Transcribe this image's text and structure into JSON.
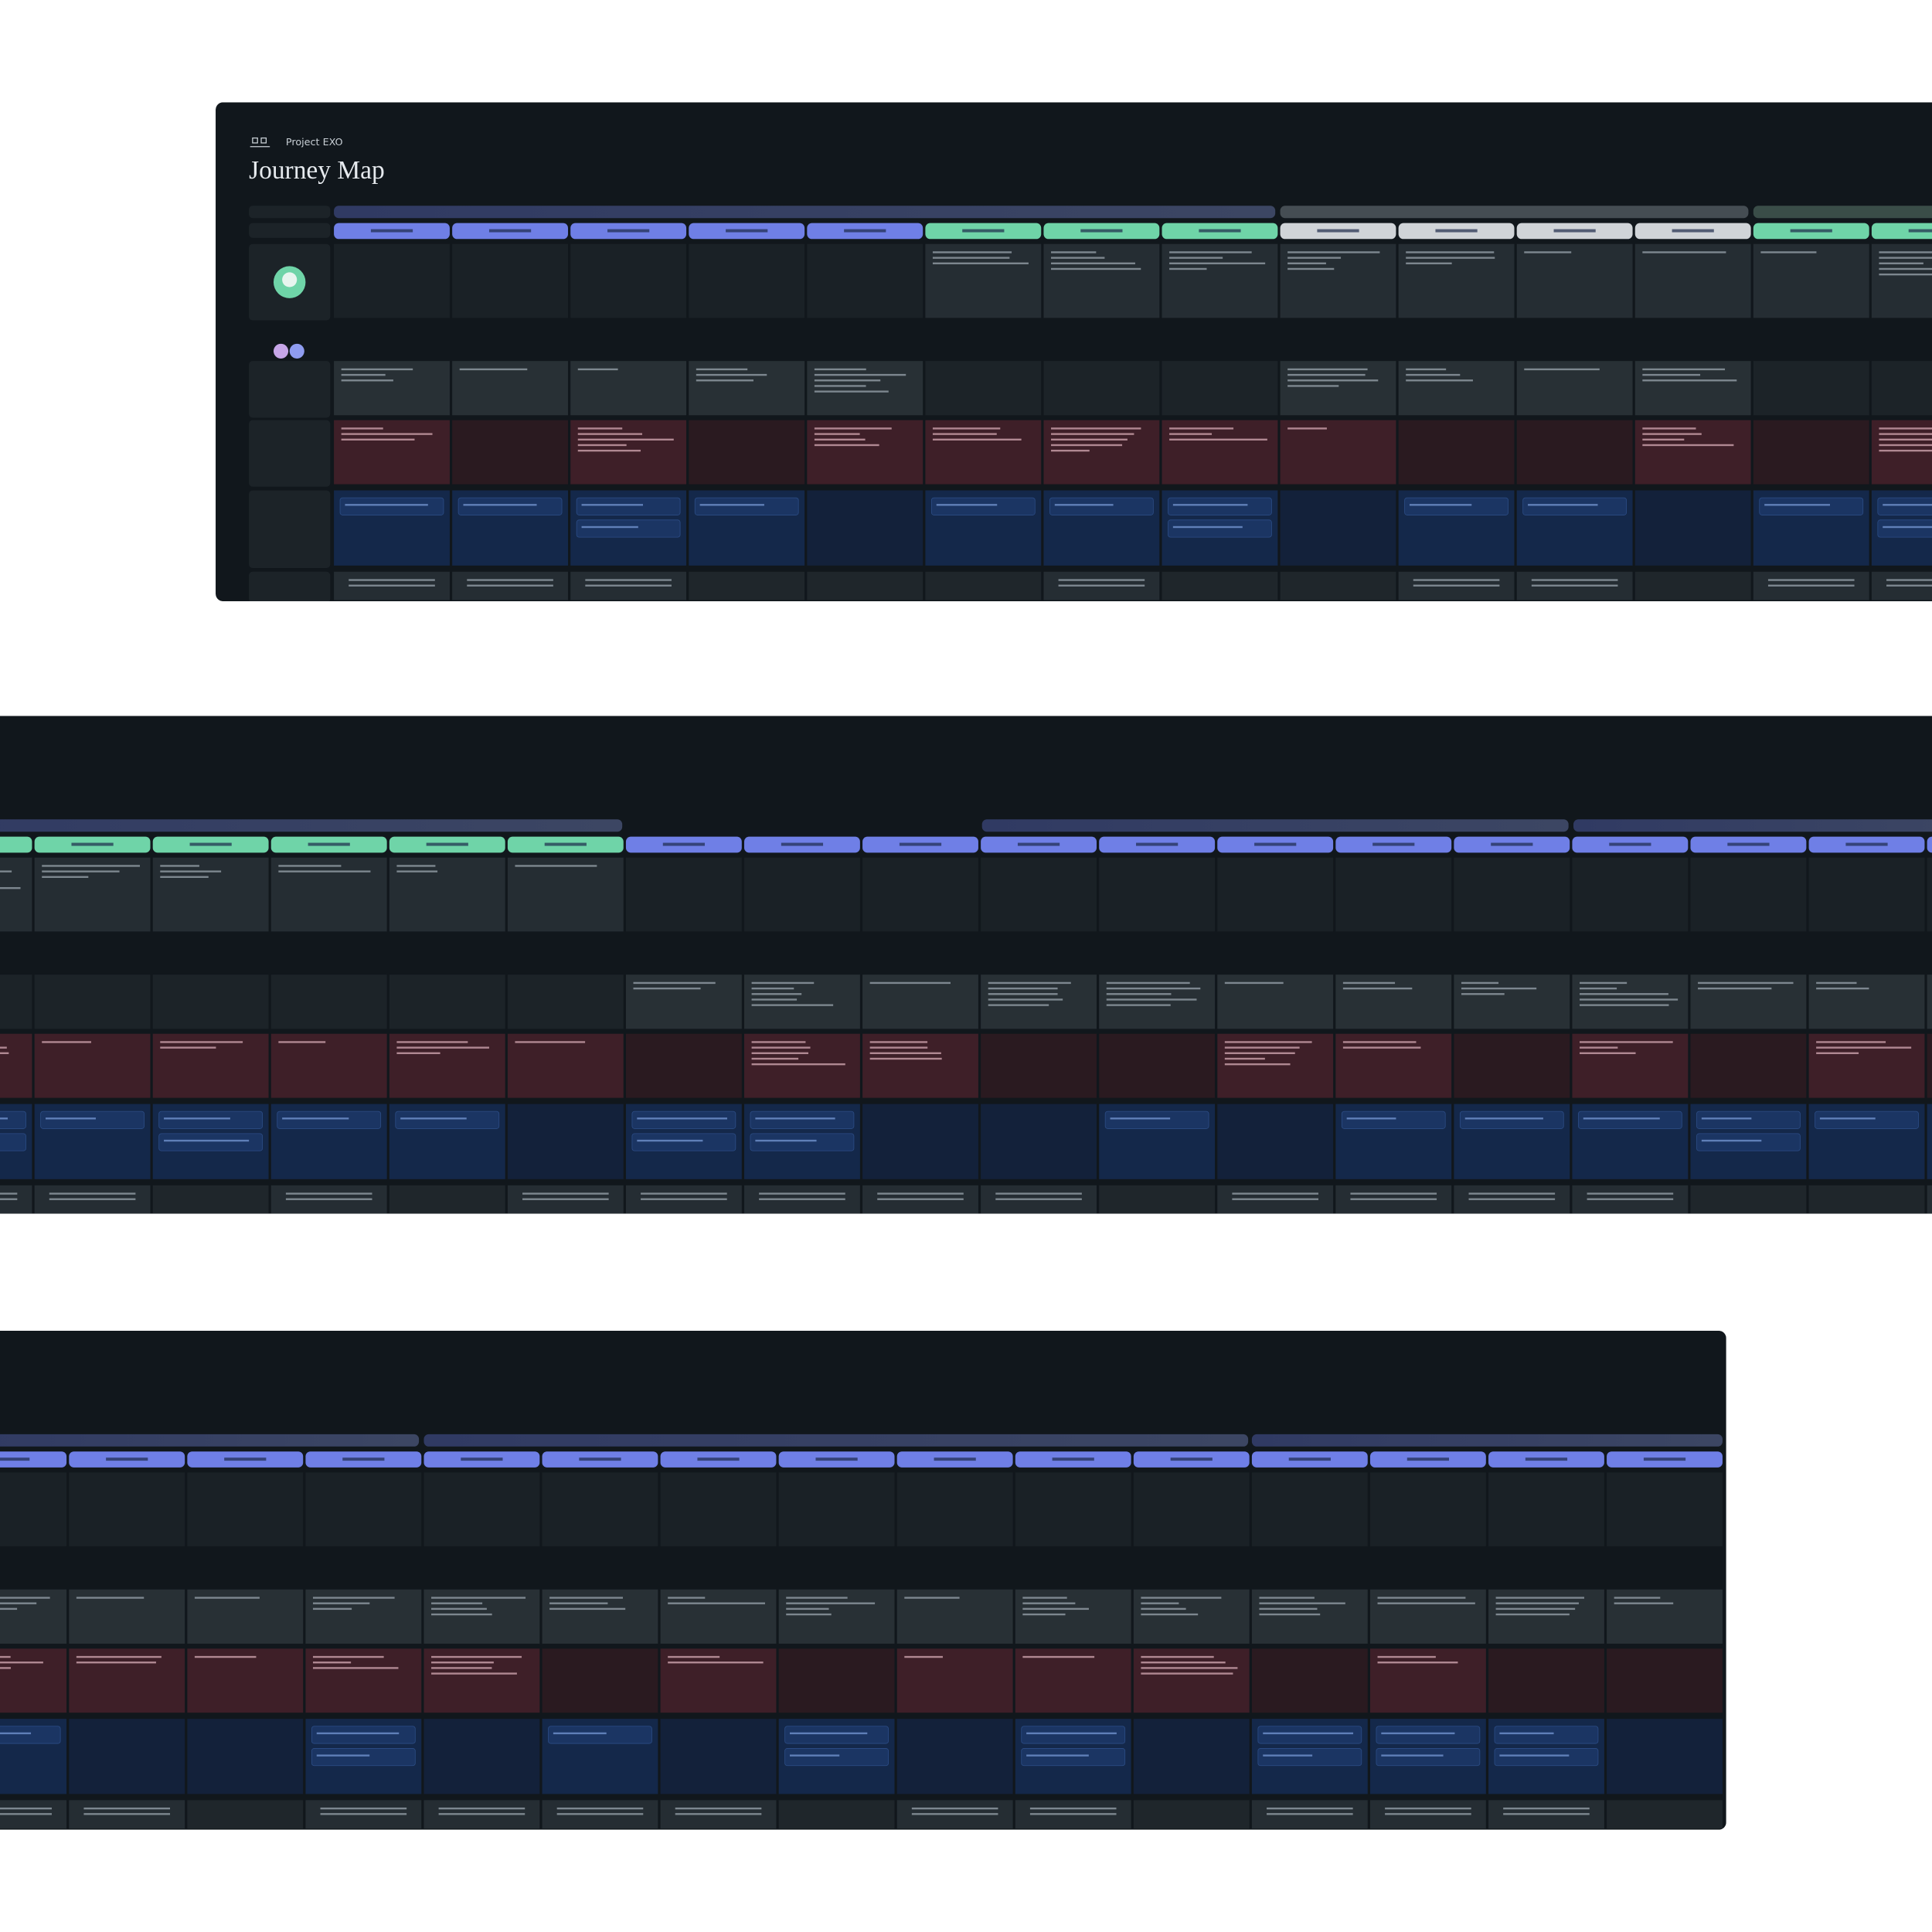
{
  "header": {
    "project": "Project EXO",
    "title": "Journey Map"
  }
}
